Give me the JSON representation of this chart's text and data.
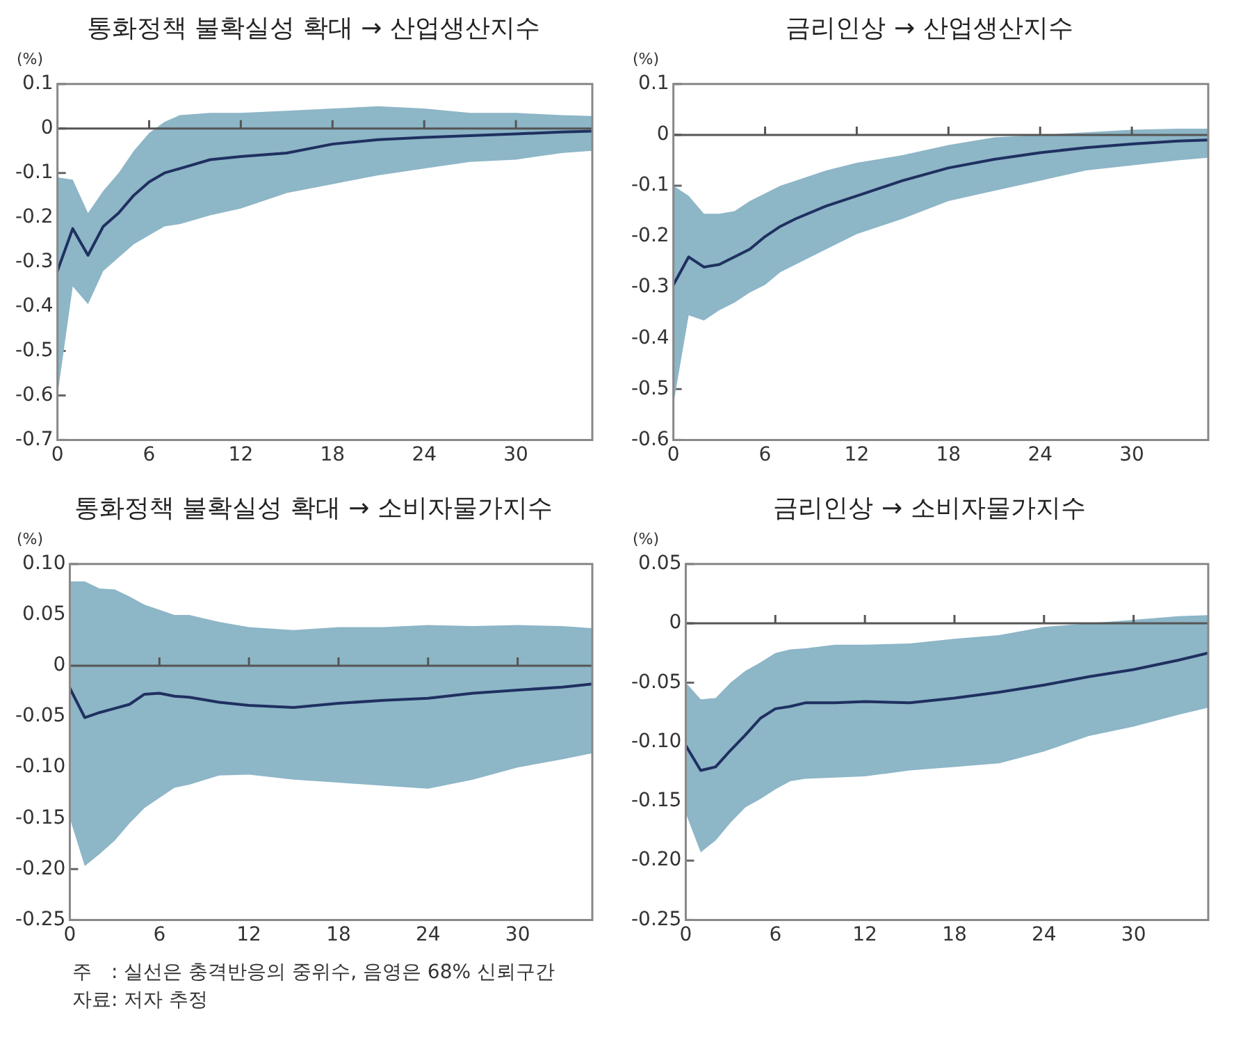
{
  "chart_data": [
    {
      "type": "line",
      "title": "통화정책 불확실성 확대 → 산업생산지수",
      "ylabel": "(%)",
      "xlim": [
        0,
        35
      ],
      "xticks": [
        0,
        6,
        12,
        18,
        24,
        30
      ],
      "ylim": [
        -0.7,
        0.1
      ],
      "yticks": [
        0.1,
        0,
        -0.1,
        -0.2,
        -0.3,
        -0.4,
        -0.5,
        -0.6,
        -0.7
      ],
      "grid": false,
      "legend": false,
      "ref_lines": [
        {
          "axis": "y",
          "value": 0,
          "color": "#555555"
        }
      ],
      "series": [
        {
          "color": "#1f3060",
          "x": [
            0,
            1,
            2,
            3,
            4,
            5,
            6,
            7,
            8,
            10,
            12,
            15,
            18,
            21,
            24,
            27,
            30,
            33,
            35
          ],
          "values": [
            -0.32,
            -0.225,
            -0.285,
            -0.22,
            -0.19,
            -0.15,
            -0.12,
            -0.1,
            -0.09,
            -0.07,
            -0.063,
            -0.055,
            -0.035,
            -0.025,
            -0.02,
            -0.016,
            -0.012,
            -0.008,
            -0.006
          ],
          "lower": [
            -0.6,
            -0.355,
            -0.395,
            -0.32,
            -0.29,
            -0.26,
            -0.24,
            -0.22,
            -0.215,
            -0.195,
            -0.18,
            -0.145,
            -0.125,
            -0.105,
            -0.09,
            -0.075,
            -0.07,
            -0.055,
            -0.05
          ],
          "upper": [
            -0.11,
            -0.115,
            -0.19,
            -0.14,
            -0.1,
            -0.05,
            -0.01,
            0.015,
            0.03,
            0.035,
            0.035,
            0.04,
            0.045,
            0.05,
            0.045,
            0.035,
            0.035,
            0.03,
            0.028
          ]
        }
      ]
    },
    {
      "type": "line",
      "title": "금리인상 → 산업생산지수",
      "ylabel": "(%)",
      "xlim": [
        0,
        35
      ],
      "xticks": [
        0,
        6,
        12,
        18,
        24,
        30
      ],
      "ylim": [
        -0.6,
        0.1
      ],
      "yticks": [
        0.1,
        0,
        -0.1,
        -0.2,
        -0.3,
        -0.4,
        -0.5,
        -0.6
      ],
      "grid": false,
      "legend": false,
      "ref_lines": [
        {
          "axis": "y",
          "value": 0,
          "color": "#555555"
        }
      ],
      "series": [
        {
          "color": "#1f3060",
          "x": [
            0,
            1,
            2,
            3,
            4,
            5,
            6,
            7,
            8,
            10,
            12,
            15,
            18,
            21,
            24,
            27,
            30,
            33,
            35
          ],
          "values": [
            -0.295,
            -0.24,
            -0.26,
            -0.255,
            -0.24,
            -0.225,
            -0.2,
            -0.18,
            -0.165,
            -0.14,
            -0.12,
            -0.09,
            -0.065,
            -0.048,
            -0.035,
            -0.025,
            -0.018,
            -0.012,
            -0.01
          ],
          "lower": [
            -0.53,
            -0.355,
            -0.365,
            -0.345,
            -0.33,
            -0.31,
            -0.295,
            -0.27,
            -0.255,
            -0.225,
            -0.195,
            -0.165,
            -0.13,
            -0.11,
            -0.09,
            -0.07,
            -0.06,
            -0.05,
            -0.045
          ],
          "upper": [
            -0.1,
            -0.12,
            -0.155,
            -0.155,
            -0.15,
            -0.13,
            -0.115,
            -0.1,
            -0.09,
            -0.07,
            -0.055,
            -0.04,
            -0.02,
            -0.005,
            0.0,
            0.005,
            0.01,
            0.012,
            0.012
          ]
        }
      ]
    },
    {
      "type": "line",
      "title": "통화정책 불확실성 확대 → 소비자물가지수",
      "ylabel": "(%)",
      "xlim": [
        0,
        35
      ],
      "xticks": [
        0,
        6,
        12,
        18,
        24,
        30
      ],
      "ylim": [
        -0.25,
        0.1
      ],
      "yticks": [
        {
          "value": 0.1,
          "label": "0.10"
        },
        0.05,
        0,
        -0.05,
        {
          "value": -0.1,
          "label": "-0.10"
        },
        -0.15,
        {
          "value": -0.2,
          "label": "-0.20"
        },
        -0.25
      ],
      "grid": false,
      "legend": false,
      "ref_lines": [
        {
          "axis": "y",
          "value": 0,
          "color": "#555555"
        }
      ],
      "annotations": [
        "주　: 실선은 충격반응의 중위수, 음영은 68% 신뢰구간",
        "자료: 저자 추정"
      ],
      "series": [
        {
          "color": "#1f3060",
          "x": [
            0,
            1,
            2,
            3,
            4,
            5,
            6,
            7,
            8,
            10,
            12,
            15,
            18,
            21,
            24,
            27,
            30,
            33,
            35
          ],
          "values": [
            -0.022,
            -0.051,
            -0.046,
            -0.042,
            -0.038,
            -0.028,
            -0.027,
            -0.03,
            -0.031,
            -0.036,
            -0.039,
            -0.041,
            -0.037,
            -0.034,
            -0.032,
            -0.027,
            -0.024,
            -0.021,
            -0.018
          ],
          "lower": [
            -0.15,
            -0.197,
            -0.185,
            -0.172,
            -0.155,
            -0.14,
            -0.13,
            -0.12,
            -0.117,
            -0.108,
            -0.107,
            -0.112,
            -0.115,
            -0.118,
            -0.121,
            -0.112,
            -0.1,
            -0.092,
            -0.086
          ],
          "upper": [
            0.083,
            0.083,
            0.076,
            0.075,
            0.068,
            0.06,
            0.055,
            0.05,
            0.05,
            0.043,
            0.038,
            0.035,
            0.038,
            0.038,
            0.04,
            0.039,
            0.04,
            0.039,
            0.037
          ]
        }
      ]
    },
    {
      "type": "line",
      "title": "금리인상 → 소비자물가지수",
      "ylabel": "(%)",
      "xlim": [
        0,
        35
      ],
      "xticks": [
        0,
        6,
        12,
        18,
        24,
        30
      ],
      "ylim": [
        -0.25,
        0.05
      ],
      "yticks": [
        0.05,
        0,
        -0.05,
        {
          "value": -0.1,
          "label": "-0.10"
        },
        -0.15,
        {
          "value": -0.2,
          "label": "-0.20"
        },
        -0.25
      ],
      "grid": false,
      "legend": false,
      "ref_lines": [
        {
          "axis": "y",
          "value": 0,
          "color": "#555555"
        }
      ],
      "series": [
        {
          "color": "#1f3060",
          "x": [
            0,
            1,
            2,
            3,
            4,
            5,
            6,
            7,
            8,
            10,
            12,
            15,
            18,
            21,
            24,
            27,
            30,
            33,
            35
          ],
          "values": [
            -0.103,
            -0.124,
            -0.121,
            -0.107,
            -0.094,
            -0.08,
            -0.072,
            -0.07,
            -0.067,
            -0.067,
            -0.066,
            -0.067,
            -0.063,
            -0.058,
            -0.052,
            -0.045,
            -0.039,
            -0.031,
            -0.025
          ],
          "lower": [
            -0.16,
            -0.193,
            -0.183,
            -0.168,
            -0.155,
            -0.148,
            -0.14,
            -0.133,
            -0.131,
            -0.13,
            -0.129,
            -0.124,
            -0.121,
            -0.118,
            -0.108,
            -0.095,
            -0.087,
            -0.077,
            -0.071
          ],
          "upper": [
            -0.05,
            -0.064,
            -0.063,
            -0.05,
            -0.04,
            -0.033,
            -0.025,
            -0.022,
            -0.021,
            -0.018,
            -0.018,
            -0.017,
            -0.013,
            -0.01,
            -0.003,
            0.0,
            0.003,
            0.006,
            0.007
          ]
        }
      ]
    }
  ]
}
